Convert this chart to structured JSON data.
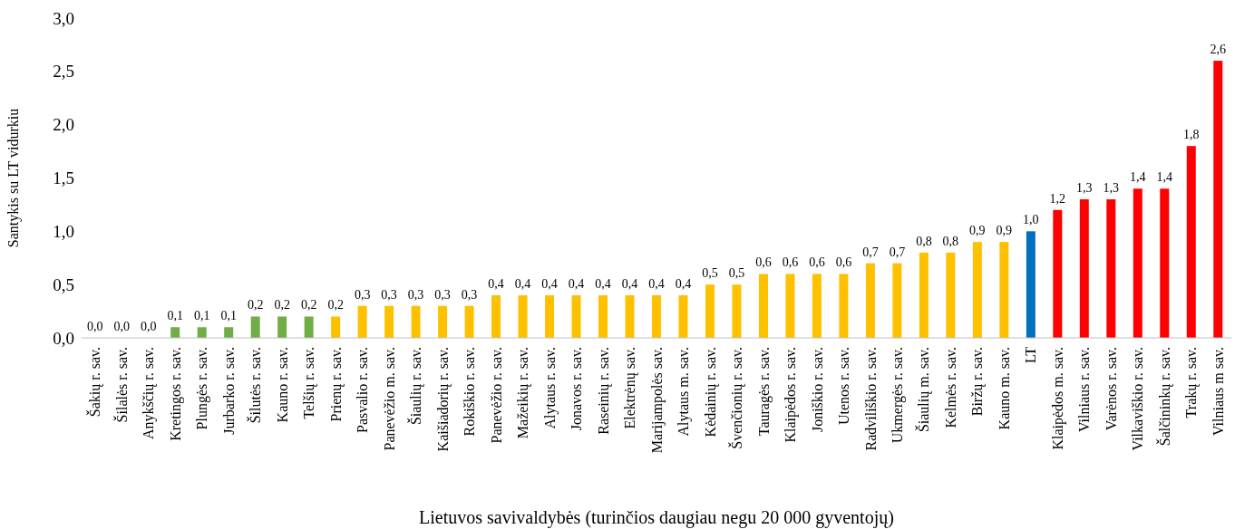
{
  "chart_data": {
    "type": "bar",
    "xlabel": "Lietuvos savivaldybės (turinčios daugiau negu 20 000 gyventojų)",
    "ylabel": "Santykis su LT vidurkiu",
    "categories": [
      "Šakių r. sav.",
      "Šilalės r. sav.",
      "Anykščių r. sav.",
      "Kretingos r. sav.",
      "Plungės r. sav.",
      "Jurbarko r. sav.",
      "Šilutės r. sav.",
      "Kauno r. sav.",
      "Telšių r. sav.",
      "Prienų r. sav.",
      "Pasvalio r. sav.",
      "Panevėžio m. sav.",
      "Šiaulių r. sav.",
      "Kaišiadorių r. sav.",
      "Rokiškio r. sav.",
      "Panevėžio r. sav.",
      "Mažeikių r. sav.",
      "Alytaus r. sav.",
      "Jonavos r. sav.",
      "Raseinių r. sav.",
      "Elektrėnų sav.",
      "Marijampolės sav.",
      "Alytaus m. sav.",
      "Kėdainių r. sav.",
      "Švenčionių r. sav.",
      "Tauragės r. sav.",
      "Klaipėdos r. sav.",
      "Joniškio r. sav.",
      "Utenos r. sav.",
      "Radviliškio r. sav.",
      "Ukmergės r. sav.",
      "Šiaulių m. sav.",
      "Kelmės r. sav.",
      "Biržų r. sav.",
      "Kauno m. sav.",
      "LT",
      "Klaipėdos m. sav.",
      "Vilniaus r. sav.",
      "Varėnos r. sav.",
      "Vilkaviškio r. sav.",
      "Šalčininkų r. sav.",
      "Trakų r. sav.",
      "Vilniaus m sav."
    ],
    "values": [
      0,
      0,
      0,
      0.1,
      0.1,
      0.1,
      0.2,
      0.2,
      0.2,
      0.2,
      0.3,
      0.3,
      0.3,
      0.3,
      0.3,
      0.4,
      0.4,
      0.4,
      0.4,
      0.4,
      0.4,
      0.4,
      0.4,
      0.5,
      0.5,
      0.6,
      0.6,
      0.6,
      0.6,
      0.7,
      0.7,
      0.8,
      0.8,
      0.9,
      0.9,
      1.0,
      1.2,
      1.3,
      1.3,
      1.4,
      1.4,
      1.8,
      2.6
    ],
    "value_labels": [
      "0,0",
      "0,0",
      "0,0",
      "0,1",
      "0,1",
      "0,1",
      "0,2",
      "0,2",
      "0,2",
      "0,2",
      "0,3",
      "0,3",
      "0,3",
      "0,3",
      "0,3",
      "0,4",
      "0,4",
      "0,4",
      "0,4",
      "0,4",
      "0,4",
      "0,4",
      "0,4",
      "0,5",
      "0,5",
      "0,6",
      "0,6",
      "0,6",
      "0,6",
      "0,7",
      "0,7",
      "0,8",
      "0,8",
      "0,9",
      "0,9",
      "1,0",
      "1,2",
      "1,3",
      "1,3",
      "1,4",
      "1,4",
      "1,8",
      "2,6"
    ],
    "colors": [
      "#70ad47",
      "#70ad47",
      "#70ad47",
      "#70ad47",
      "#70ad47",
      "#70ad47",
      "#70ad47",
      "#70ad47",
      "#70ad47",
      "#ffc000",
      "#ffc000",
      "#ffc000",
      "#ffc000",
      "#ffc000",
      "#ffc000",
      "#ffc000",
      "#ffc000",
      "#ffc000",
      "#ffc000",
      "#ffc000",
      "#ffc000",
      "#ffc000",
      "#ffc000",
      "#ffc000",
      "#ffc000",
      "#ffc000",
      "#ffc000",
      "#ffc000",
      "#ffc000",
      "#ffc000",
      "#ffc000",
      "#ffc000",
      "#ffc000",
      "#ffc000",
      "#ffc000",
      "#0070c0",
      "#ff0000",
      "#ff0000",
      "#ff0000",
      "#ff0000",
      "#ff0000",
      "#ff0000",
      "#ff0000"
    ],
    "ylim": [
      0,
      3
    ],
    "yticks": [
      {
        "value": 0,
        "label": "0,0"
      },
      {
        "value": 0.5,
        "label": "0,5"
      },
      {
        "value": 1,
        "label": "1,0"
      },
      {
        "value": 1.5,
        "label": "1,5"
      },
      {
        "value": 2,
        "label": "2,0"
      },
      {
        "value": 2.5,
        "label": "2,5"
      },
      {
        "value": 3,
        "label": "3,0"
      }
    ],
    "grid": false
  }
}
